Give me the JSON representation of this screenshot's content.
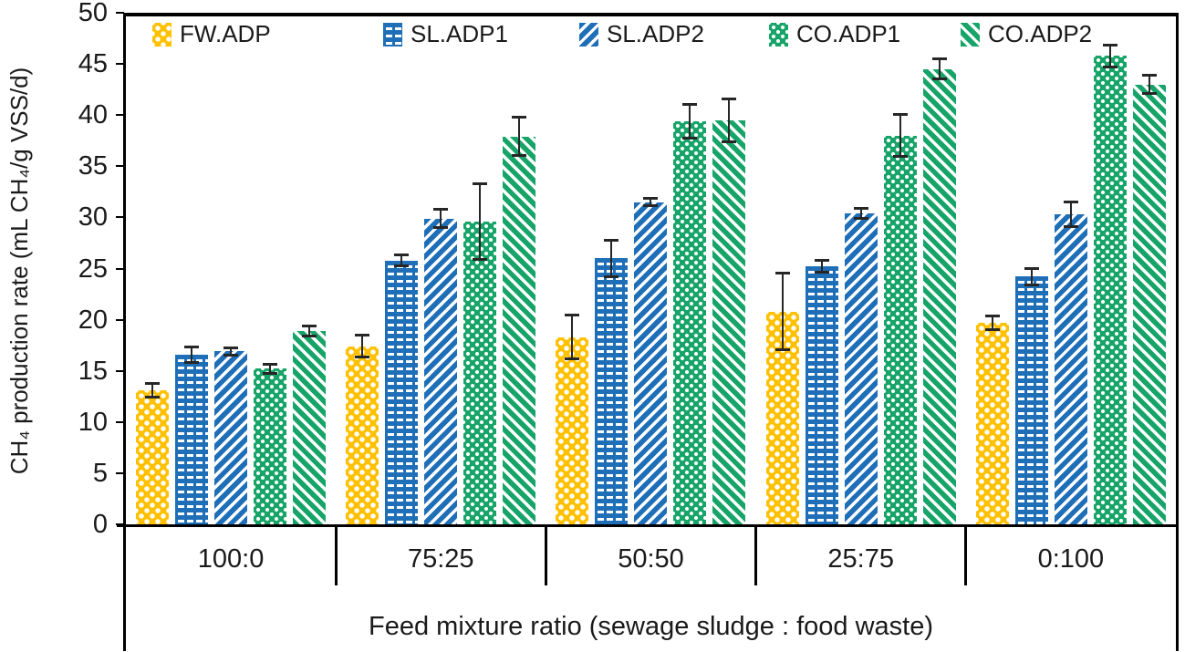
{
  "chart_data": {
    "type": "bar",
    "title": "",
    "xlabel": "Feed mixture ratio (sewage sludge : food waste)",
    "ylabel": "CH₄ production rate (mL CH₄/g VSS/d)",
    "ylim": [
      0,
      50
    ],
    "ytick_interval": 5,
    "yticks": [
      0,
      5,
      10,
      15,
      20,
      25,
      30,
      35,
      40,
      45,
      50
    ],
    "grid": false,
    "legend_position": "top-inside",
    "error_bars": true,
    "categories": [
      "100:0",
      "75:25",
      "50:50",
      "25:75",
      "0:100"
    ],
    "series": [
      {
        "name": "FW.ADP",
        "key": "fw",
        "color": "#FFC000",
        "pattern": "white-dots-on-gold",
        "values": [
          13.1,
          17.4,
          18.3,
          20.8,
          19.7
        ],
        "errors": [
          0.8,
          1.2,
          2.3,
          3.9,
          0.8
        ]
      },
      {
        "name": "SL.ADP1",
        "key": "sl1",
        "color": "#1E6FB8",
        "pattern": "white-dashes-on-blue",
        "values": [
          16.6,
          25.8,
          26.0,
          25.2,
          24.2
        ],
        "errors": [
          0.9,
          0.7,
          1.9,
          0.7,
          0.9
        ]
      },
      {
        "name": "SL.ADP2",
        "key": "sl2",
        "color": "#1E6FB8",
        "pattern": "diagonal-up-stripes-on-blue",
        "values": [
          16.9,
          29.9,
          31.5,
          30.4,
          30.3
        ],
        "errors": [
          0.5,
          1.0,
          0.5,
          0.6,
          1.3
        ]
      },
      {
        "name": "CO.ADP1",
        "key": "co1",
        "color": "#17A468",
        "pattern": "white-dots-on-green",
        "values": [
          15.2,
          29.6,
          39.4,
          38.0,
          45.8
        ],
        "errors": [
          0.6,
          3.8,
          1.8,
          2.2,
          1.2
        ]
      },
      {
        "name": "CO.ADP2",
        "key": "co2",
        "color": "#17A468",
        "pattern": "diagonal-down-stripes-on-green",
        "values": [
          18.9,
          37.9,
          39.5,
          44.5,
          43.0
        ],
        "errors": [
          0.6,
          2.0,
          2.2,
          1.1,
          1.0
        ]
      }
    ],
    "colors": {
      "axis": "#000000",
      "text": "#1a1a1a",
      "error_bar": "#262626"
    }
  }
}
